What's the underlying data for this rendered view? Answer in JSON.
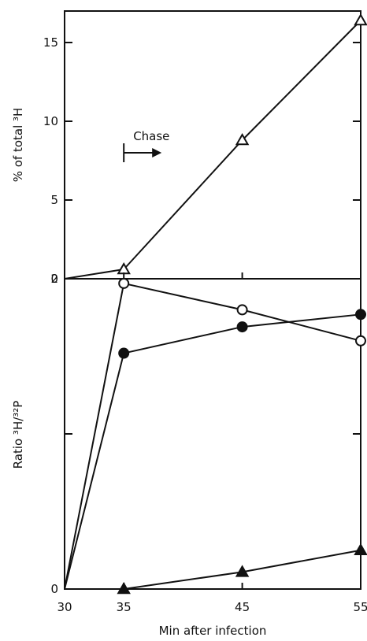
{
  "chart_data": [
    {
      "type": "line",
      "panel": "top",
      "ylabel": "% of total ³H",
      "xlim": [
        30,
        55
      ],
      "ylim": [
        0,
        17
      ],
      "yticks": [
        0,
        5,
        10,
        15
      ],
      "annotation": {
        "text": "Chase",
        "x": 35
      },
      "series": [
        {
          "marker": "open-triangle",
          "x": [
            30,
            35,
            45,
            55
          ],
          "y": [
            0,
            0.6,
            8.8,
            16.4
          ]
        }
      ]
    },
    {
      "type": "line",
      "panel": "bottom",
      "ylabel": "Ratio ³H/³²P",
      "xlabel": "Min after infection",
      "xlim": [
        30,
        55
      ],
      "ylim": [
        0,
        2
      ],
      "yticks": [
        0,
        2
      ],
      "xticks": [
        30,
        35,
        45,
        55
      ],
      "series": [
        {
          "marker": "open-circle",
          "x": [
            30,
            35,
            45,
            55
          ],
          "y": [
            0,
            1.97,
            1.8,
            1.6
          ]
        },
        {
          "marker": "filled-circle",
          "x": [
            30,
            35,
            45,
            55
          ],
          "y": [
            0,
            1.52,
            1.69,
            1.77
          ]
        },
        {
          "marker": "filled-triangle",
          "x": [
            35,
            45,
            55
          ],
          "y": [
            0,
            0.11,
            0.25
          ]
        }
      ]
    }
  ]
}
